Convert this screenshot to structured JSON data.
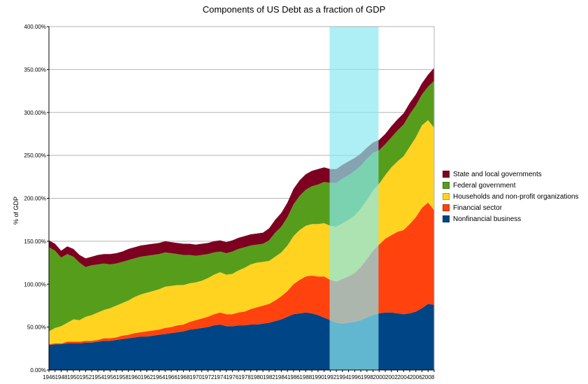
{
  "chart_data": {
    "type": "area",
    "stacked": true,
    "title": "Components of US Debt as a fraction of GDP",
    "xlabel": "",
    "ylabel": "% of GDP",
    "ylim": [
      0,
      400
    ],
    "yticks": [
      "0.00%",
      "50.00%",
      "100.00%",
      "150.00%",
      "200.00%",
      "250.00%",
      "300.00%",
      "350.00%",
      "400.00%"
    ],
    "xticks": [
      "1946",
      "1948",
      "1950",
      "1952",
      "1954",
      "1956",
      "1958",
      "1960",
      "1962",
      "1964",
      "1966",
      "1968",
      "1970",
      "1972",
      "1974",
      "1976",
      "1978",
      "1980",
      "1982",
      "1984",
      "1986",
      "1988",
      "1990",
      "1992",
      "1994",
      "1996",
      "1998",
      "2000",
      "2002",
      "2004",
      "2006",
      "2008"
    ],
    "x": [
      1946,
      1947,
      1948,
      1949,
      1950,
      1951,
      1952,
      1953,
      1954,
      1955,
      1956,
      1957,
      1958,
      1959,
      1960,
      1961,
      1962,
      1963,
      1964,
      1965,
      1966,
      1967,
      1968,
      1969,
      1970,
      1971,
      1972,
      1973,
      1974,
      1975,
      1976,
      1977,
      1978,
      1979,
      1980,
      1981,
      1982,
      1983,
      1984,
      1985,
      1986,
      1987,
      1988,
      1989,
      1990,
      1991,
      1992,
      1993,
      1994,
      1995,
      1996,
      1997,
      1998,
      1999,
      2000,
      2001,
      2002,
      2003,
      2004,
      2005,
      2006,
      2007,
      2008,
      2009
    ],
    "grid": true,
    "legend_position": "right",
    "highlight_range": [
      1991.9,
      1999.9
    ],
    "highlight_color": "#8ae8f0",
    "series": [
      {
        "name": "Nonfinancial business",
        "color": "#004586",
        "values": [
          29,
          30,
          30,
          31,
          31,
          31,
          32,
          32,
          33,
          34,
          34,
          35,
          36,
          37,
          38,
          39,
          39,
          40,
          41,
          42,
          43,
          44,
          45,
          47,
          48,
          49,
          50,
          52,
          53,
          51,
          51,
          52,
          52,
          53,
          53,
          54,
          55,
          57,
          59,
          62,
          65,
          66,
          67,
          66,
          64,
          61,
          58,
          55,
          54,
          55,
          56,
          58,
          61,
          64,
          66,
          67,
          67,
          66,
          65,
          66,
          68,
          72,
          77,
          76
        ]
      },
      {
        "name": "Financial sector",
        "color": "#ff420e",
        "values": [
          1,
          1,
          1,
          2,
          2,
          2,
          2,
          2,
          2,
          3,
          3,
          3,
          4,
          4,
          5,
          5,
          6,
          6,
          6,
          7,
          7,
          8,
          8,
          9,
          10,
          11,
          12,
          13,
          14,
          14,
          14,
          15,
          16,
          18,
          20,
          21,
          22,
          24,
          27,
          30,
          35,
          39,
          42,
          44,
          45,
          48,
          47,
          48,
          52,
          54,
          57,
          62,
          68,
          75,
          80,
          86,
          90,
          95,
          98,
          104,
          110,
          117,
          118,
          110
        ]
      },
      {
        "name": "Households and non-profit organizations",
        "color": "#ffd320",
        "values": [
          15,
          18,
          20,
          22,
          26,
          25,
          28,
          30,
          32,
          33,
          35,
          37,
          38,
          40,
          42,
          44,
          45,
          46,
          47,
          48,
          48,
          47,
          46,
          45,
          44,
          44,
          45,
          46,
          47,
          46,
          47,
          49,
          51,
          52,
          52,
          51,
          50,
          51,
          51,
          53,
          56,
          58,
          59,
          60,
          61,
          62,
          63,
          64,
          65,
          66,
          67,
          68,
          69,
          70,
          71,
          74,
          79,
          82,
          86,
          90,
          93,
          96,
          96,
          96
        ]
      },
      {
        "name": "Federal government",
        "color": "#579d1c",
        "values": [
          98,
          90,
          80,
          80,
          73,
          67,
          58,
          58,
          56,
          54,
          51,
          49,
          48,
          47,
          45,
          44,
          43,
          42,
          41,
          40,
          38,
          36,
          35,
          33,
          31,
          30,
          28,
          26,
          24,
          25,
          26,
          25,
          24,
          22,
          21,
          21,
          24,
          28,
          30,
          33,
          37,
          40,
          42,
          44,
          46,
          48,
          50,
          51,
          52,
          52,
          52,
          50,
          48,
          44,
          39,
          36,
          35,
          36,
          37,
          38,
          37,
          36,
          39,
          55
        ]
      },
      {
        "name": "State and local governments",
        "color": "#7e0021",
        "values": [
          8,
          8,
          8,
          9,
          9,
          9,
          10,
          10,
          11,
          11,
          12,
          12,
          12,
          13,
          13,
          13,
          13,
          13,
          13,
          13,
          13,
          13,
          13,
          13,
          13,
          13,
          13,
          13,
          13,
          13,
          13,
          13,
          13,
          13,
          13,
          13,
          14,
          15,
          16,
          17,
          18,
          18,
          18,
          18,
          18,
          17,
          16,
          16,
          16,
          16,
          15,
          14,
          13,
          12,
          12,
          12,
          13,
          13,
          13,
          13,
          13,
          13,
          14,
          15
        ]
      }
    ]
  }
}
